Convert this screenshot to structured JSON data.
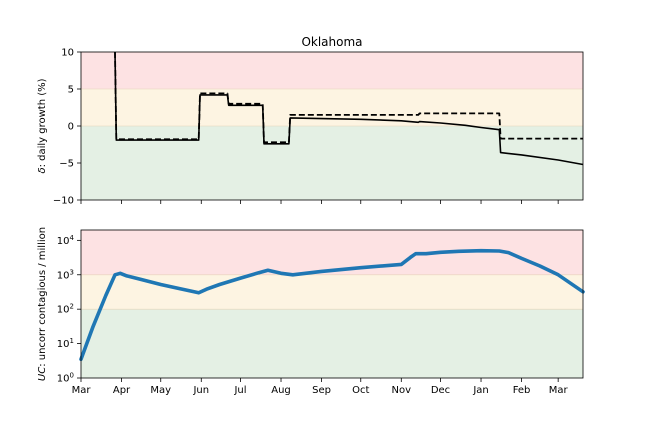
{
  "chart_data": [
    {
      "type": "line",
      "title": "Oklahoma",
      "ylabel_symbol": "δ",
      "ylabel_rest": ": daily growth (%)",
      "ylim": [
        -10,
        10
      ],
      "yticks": [
        10,
        5,
        0,
        -5,
        -10
      ],
      "ytick_labels": [
        "10",
        "5",
        "0",
        "−5",
        "−10"
      ],
      "xticks": [],
      "background_bands": [
        {
          "from": 5,
          "to": 10,
          "color": "#fde2e3"
        },
        {
          "from": 0,
          "to": 5,
          "color": "#fdf4e2"
        },
        {
          "from": -10,
          "to": 0,
          "color": "#e4f0e4"
        }
      ],
      "series": [
        {
          "style": "solid",
          "color": "#000000",
          "x": [
            "2020-03-27",
            "2020-03-28",
            "2020-05-30",
            "2020-05-31",
            "2020-06-21",
            "2020-06-22",
            "2020-07-18",
            "2020-07-19",
            "2020-08-07",
            "2020-08-08",
            "2020-09-01",
            "2020-10-01",
            "2020-11-01",
            "2020-11-14",
            "2020-11-15",
            "2020-12-01",
            "2020-12-20",
            "2021-01-01",
            "2021-01-15",
            "2021-01-16",
            "2021-02-01",
            "2021-03-01",
            "2021-03-20"
          ],
          "y": [
            10,
            -1.9,
            -1.9,
            4.2,
            4.2,
            2.8,
            2.8,
            -2.4,
            -2.4,
            1.1,
            1.0,
            0.9,
            0.7,
            0.5,
            0.6,
            0.4,
            0.1,
            -0.2,
            -0.5,
            -3.6,
            -3.9,
            -4.6,
            -5.2
          ]
        },
        {
          "style": "dashed",
          "color": "#000000",
          "x": [
            "2020-03-27",
            "2020-03-28",
            "2020-05-30",
            "2020-05-31",
            "2020-06-21",
            "2020-06-22",
            "2020-07-18",
            "2020-07-19",
            "2020-08-07",
            "2020-08-08",
            "2020-11-14",
            "2020-11-15",
            "2021-01-15",
            "2021-01-16",
            "2021-03-20"
          ],
          "y": [
            10,
            -1.8,
            -1.8,
            4.4,
            4.4,
            3.0,
            3.0,
            -2.2,
            -2.2,
            1.5,
            1.5,
            1.7,
            1.7,
            -1.7,
            -1.7
          ]
        }
      ]
    },
    {
      "type": "line",
      "ylabel_symbol": "UC",
      "ylabel_rest": ": uncorr contagious / million",
      "yscale": "log",
      "ylim": [
        1,
        20000
      ],
      "yticks": [
        {
          "value": 10000,
          "base": "10",
          "exp": "4"
        },
        {
          "value": 1000,
          "base": "10",
          "exp": "3"
        },
        {
          "value": 100,
          "base": "10",
          "exp": "2"
        },
        {
          "value": 10,
          "base": "10",
          "exp": "1"
        },
        {
          "value": 1,
          "base": "10",
          "exp": "0"
        }
      ],
      "xticks": [
        "Mar",
        "Apr",
        "May",
        "Jun",
        "Jul",
        "Aug",
        "Sep",
        "Oct",
        "Nov",
        "Dec",
        "Jan",
        "Feb",
        "Mar"
      ],
      "xtick_dates": [
        "2020-03-01",
        "2020-04-01",
        "2020-05-01",
        "2020-06-01",
        "2020-07-01",
        "2020-08-01",
        "2020-09-01",
        "2020-10-01",
        "2020-11-01",
        "2020-12-01",
        "2021-01-01",
        "2021-02-01",
        "2021-03-01"
      ],
      "background_bands": [
        {
          "from": 1000,
          "to": 20000,
          "color": "#fde2e3"
        },
        {
          "from": 100,
          "to": 1000,
          "color": "#fdf4e2"
        },
        {
          "from": 1,
          "to": 100,
          "color": "#e4f0e4"
        }
      ],
      "series": [
        {
          "style": "solid",
          "color": "#1f77b4",
          "x": [
            "2020-03-01",
            "2020-03-10",
            "2020-03-20",
            "2020-03-27",
            "2020-03-31",
            "2020-04-05",
            "2020-04-15",
            "2020-05-01",
            "2020-05-15",
            "2020-05-30",
            "2020-06-05",
            "2020-06-15",
            "2020-07-01",
            "2020-07-15",
            "2020-07-22",
            "2020-08-01",
            "2020-08-10",
            "2020-09-01",
            "2020-10-01",
            "2020-11-01",
            "2020-11-08",
            "2020-11-12",
            "2020-11-20",
            "2020-12-01",
            "2020-12-15",
            "2021-01-01",
            "2021-01-15",
            "2021-01-22",
            "2021-02-01",
            "2021-02-15",
            "2021-03-01",
            "2021-03-20"
          ],
          "y": [
            3.5,
            30,
            250,
            1000,
            1100,
            930,
            750,
            520,
            400,
            300,
            380,
            520,
            800,
            1150,
            1350,
            1100,
            1000,
            1250,
            1600,
            2000,
            3200,
            4100,
            4100,
            4500,
            4800,
            5000,
            4900,
            4400,
            3000,
            1800,
            1000,
            320
          ]
        }
      ]
    }
  ]
}
